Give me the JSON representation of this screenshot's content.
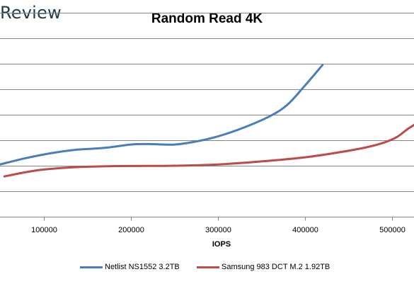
{
  "brand": {
    "text": "Review"
  },
  "chart_data": {
    "type": "line",
    "title": "Random Read 4K",
    "xlabel": "IOPS",
    "ylabel": "",
    "xlim": [
      50000,
      525000
    ],
    "ylim": [
      0,
      8
    ],
    "x_ticks": [
      100000,
      200000,
      300000,
      400000,
      500000
    ],
    "x_tick_labels": [
      "100000",
      "200000",
      "300000",
      "400000",
      "500000"
    ],
    "y_ticks": [
      1,
      2,
      3,
      4,
      5,
      6,
      7,
      8
    ],
    "grid": true,
    "legend": "bottom",
    "series": [
      {
        "name": "Netlist NS1552 3.2TB",
        "color": "#4a7ebb",
        "points": [
          [
            50000,
            2.05
          ],
          [
            80000,
            2.3
          ],
          [
            110000,
            2.5
          ],
          [
            135000,
            2.62
          ],
          [
            170000,
            2.7
          ],
          [
            200000,
            2.83
          ],
          [
            220000,
            2.85
          ],
          [
            250000,
            2.83
          ],
          [
            275000,
            2.95
          ],
          [
            300000,
            3.15
          ],
          [
            330000,
            3.5
          ],
          [
            360000,
            3.95
          ],
          [
            380000,
            4.4
          ],
          [
            400000,
            5.15
          ],
          [
            420000,
            5.95
          ]
        ]
      },
      {
        "name": "Samsung 983 DCT M.2 1.92TB",
        "color": "#be4b48",
        "points": [
          [
            55000,
            1.58
          ],
          [
            80000,
            1.75
          ],
          [
            100000,
            1.85
          ],
          [
            130000,
            1.93
          ],
          [
            160000,
            1.97
          ],
          [
            200000,
            1.99
          ],
          [
            250000,
            2.0
          ],
          [
            300000,
            2.05
          ],
          [
            350000,
            2.17
          ],
          [
            400000,
            2.33
          ],
          [
            440000,
            2.53
          ],
          [
            470000,
            2.72
          ],
          [
            490000,
            2.9
          ],
          [
            505000,
            3.12
          ],
          [
            517000,
            3.42
          ],
          [
            525000,
            3.6
          ]
        ]
      }
    ]
  }
}
